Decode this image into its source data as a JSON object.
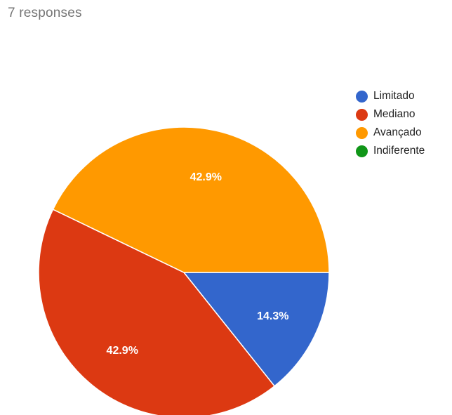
{
  "header": {
    "response_count": "7 responses"
  },
  "chart_data": {
    "type": "pie",
    "categories": [
      "Limitado",
      "Mediano",
      "Avançado",
      "Indiferente"
    ],
    "values": [
      1,
      3,
      3,
      0
    ],
    "percent_labels": [
      "14.3%",
      "42.9%",
      "42.9%",
      ""
    ],
    "colors": [
      "#3366cc",
      "#dc3912",
      "#ff9900",
      "#109618"
    ],
    "start_angle_deg": 0,
    "direction": "clockwise",
    "legend_position": "right"
  }
}
